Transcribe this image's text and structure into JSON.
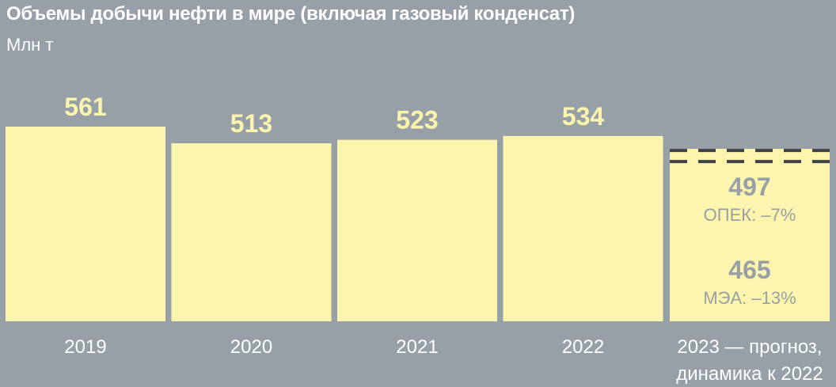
{
  "title": "Объемы добычи нефти в мире (включая газовый конденсат)",
  "subtitle": "Млн т",
  "colors": {
    "background": "#979fa7",
    "bar": "#fdf5ad",
    "value_label": "#fdf5ad",
    "forecast_label": "#979fa7",
    "dash": "#3e4146",
    "text": "#ffffff"
  },
  "chart_data": {
    "type": "bar",
    "title": "Объемы добычи нефти в мире (включая газовый конденсат)",
    "ylabel": "Млн т",
    "ylim": [
      0,
      561
    ],
    "grid": false,
    "categories": [
      "2019",
      "2020",
      "2021",
      "2022"
    ],
    "values": [
      561,
      513,
      523,
      534
    ],
    "forecast": {
      "category": "2023 — прогноз,",
      "category_line2": "динамика к 2022",
      "estimates": [
        {
          "value": 497,
          "label": "ОПЕК: –7%"
        },
        {
          "value": 465,
          "label": "МЭА: –13%"
        }
      ]
    }
  }
}
